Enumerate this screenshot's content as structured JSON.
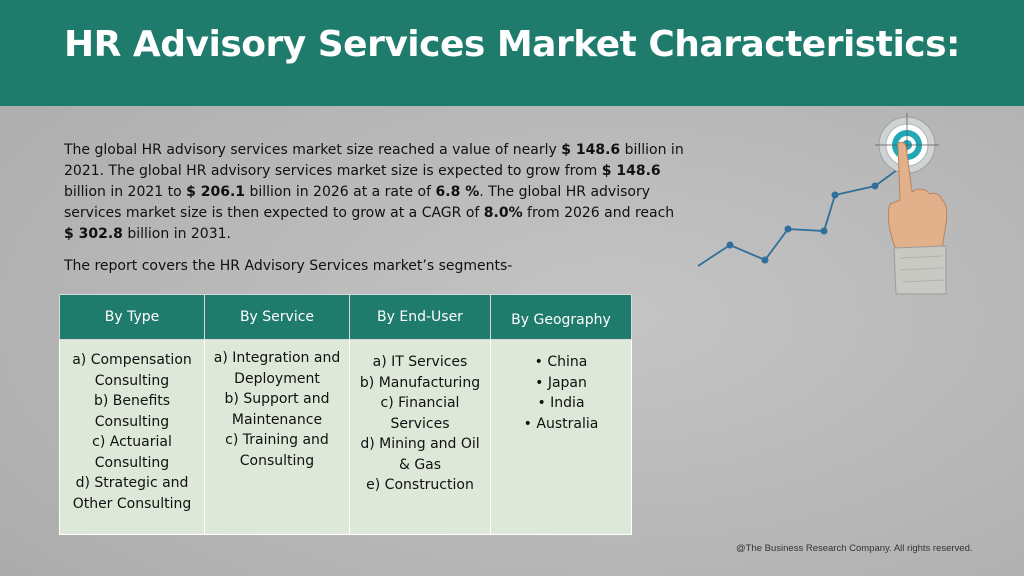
{
  "title": "HR Advisory Services Market Characteristics:",
  "paragraph": {
    "p1": "The global HR advisory services market size reached a value of nearly ",
    "v1": "$ 148.6",
    "p2": " billion in 2021. The global HR advisory services market size is expected to grow from ",
    "v2": "$ 148.6",
    "p3": " billion in 2021 to ",
    "v3": "$ 206.1",
    "p4": " billion in 2026 at a rate of ",
    "v4": "6.8 %",
    "p5": ". The global HR advisory services market size is then expected to grow at a CAGR of ",
    "v5": "8.0%",
    "p6": " from 2026 and reach ",
    "v6": "$ 302.8",
    "p7": " billion in 2031."
  },
  "covers_text": "The report covers the HR Advisory Services market’s segments-",
  "table": {
    "headers": [
      "By Type",
      "By Service",
      "By End-User",
      "By Geography"
    ],
    "by_type": [
      "a) Compensation",
      "Consulting",
      "b) Benefits",
      "Consulting",
      "c) Actuarial",
      "Consulting",
      "d) Strategic and",
      "Other Consulting"
    ],
    "by_service": [
      "a) Integration and",
      "Deployment",
      "b) Support and",
      "Maintenance",
      "c) Training and",
      "Consulting"
    ],
    "by_end_user": [
      "a) IT Services",
      "b) Manufacturing",
      "c) Financial",
      "Services",
      "d) Mining and Oil",
      "& Gas",
      "e) Construction"
    ],
    "by_geography": [
      "China",
      "Japan",
      "India",
      "Australia"
    ]
  },
  "footer": "@The Business Research Company. All rights reserved.",
  "colors": {
    "header": "#1f7b6c",
    "table_body": "#dde8d8",
    "line": "#2f6f9a"
  },
  "icons": [
    "target-icon",
    "pointing-hand-icon",
    "growth-line-icon"
  ]
}
